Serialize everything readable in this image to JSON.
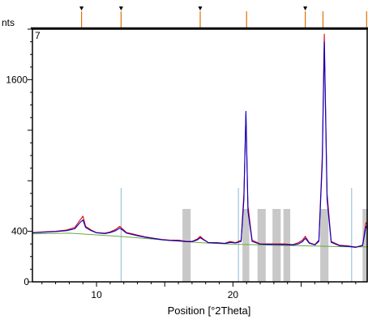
{
  "chart_data": {
    "type": "line",
    "panel_number": "7",
    "ylabel_fragment": "nts",
    "xlabel": "Position [°2Theta]",
    "xlim": [
      5.3,
      29.9
    ],
    "ylim": [
      0,
      2000
    ],
    "x_ticks": [
      {
        "value": 10,
        "label": "10"
      },
      {
        "value": 20,
        "label": "20"
      }
    ],
    "y_ticks": [
      {
        "value": 400,
        "label": "400"
      },
      {
        "value": 1600,
        "label": "1600"
      }
    ],
    "observed": {
      "color": "#e00000",
      "x": [
        5.3,
        6.0,
        7.0,
        7.8,
        8.4,
        8.8,
        9.0,
        9.2,
        9.6,
        10.0,
        10.6,
        11.0,
        11.4,
        11.7,
        11.9,
        12.2,
        12.6,
        13.0,
        13.6,
        14.2,
        14.8,
        15.4,
        16.0,
        16.6,
        17.0,
        17.4,
        17.6,
        17.8,
        18.2,
        18.8,
        19.4,
        19.8,
        20.2,
        20.6,
        20.8,
        20.95,
        21.1,
        21.4,
        22.0,
        22.6,
        23.2,
        23.8,
        24.4,
        24.8,
        25.1,
        25.3,
        25.6,
        26.0,
        26.3,
        26.55,
        26.7,
        26.9,
        27.2,
        27.8,
        28.4,
        29.0,
        29.5,
        29.75,
        29.9
      ],
      "y": [
        390,
        395,
        400,
        410,
        430,
        490,
        520,
        440,
        410,
        390,
        385,
        395,
        415,
        440,
        420,
        390,
        380,
        370,
        355,
        345,
        335,
        330,
        330,
        320,
        320,
        340,
        360,
        340,
        310,
        310,
        305,
        320,
        310,
        330,
        700,
        1330,
        600,
        330,
        300,
        300,
        300,
        300,
        295,
        310,
        330,
        360,
        310,
        295,
        330,
        1000,
        1960,
        700,
        320,
        290,
        285,
        275,
        290,
        470,
        440
      ]
    },
    "calculated": {
      "color": "#0000cc",
      "x": [
        5.3,
        6.0,
        7.0,
        7.8,
        8.4,
        8.8,
        9.0,
        9.2,
        9.6,
        10.0,
        10.6,
        11.0,
        11.4,
        11.7,
        11.9,
        12.2,
        12.6,
        13.0,
        13.6,
        14.2,
        14.8,
        15.4,
        16.0,
        16.6,
        17.0,
        17.4,
        17.6,
        17.8,
        18.2,
        18.8,
        19.4,
        19.8,
        20.2,
        20.6,
        20.8,
        20.95,
        21.1,
        21.4,
        22.0,
        22.6,
        23.2,
        23.8,
        24.4,
        24.8,
        25.1,
        25.3,
        25.6,
        26.0,
        26.3,
        26.55,
        26.7,
        26.9,
        27.2,
        27.8,
        28.4,
        29.0,
        29.5,
        29.75,
        29.9
      ],
      "y": [
        388,
        392,
        398,
        405,
        420,
        470,
        490,
        430,
        405,
        388,
        382,
        390,
        405,
        425,
        410,
        385,
        375,
        365,
        352,
        342,
        333,
        327,
        325,
        318,
        318,
        332,
        350,
        335,
        310,
        307,
        303,
        312,
        308,
        320,
        650,
        1350,
        560,
        320,
        298,
        296,
        295,
        294,
        292,
        300,
        318,
        345,
        305,
        292,
        320,
        940,
        1900,
        650,
        312,
        286,
        281,
        273,
        286,
        440,
        420
      ]
    },
    "background": {
      "color": "#6aaa3a",
      "x": [
        5.3,
        8.0,
        10.0,
        12.0,
        14.0,
        16.0,
        18.0,
        20.0,
        22.0,
        24.0,
        26.0,
        28.0,
        29.9
      ],
      "y": [
        380,
        385,
        372,
        358,
        340,
        322,
        308,
        298,
        292,
        288,
        284,
        278,
        276
      ]
    },
    "reference_lines_top": {
      "color": "#e07000",
      "positions": [
        8.9,
        11.8,
        17.6,
        21.0,
        25.3,
        26.6,
        29.8
      ],
      "marked": [
        true,
        true,
        true,
        false,
        true,
        false,
        false
      ]
    },
    "reference_lines_bottom": {
      "color": "#8ab8d8",
      "positions": [
        11.8,
        20.4,
        28.7
      ]
    },
    "gray_bands": {
      "color": "#c8c8c8",
      "ranges": [
        [
          16.3,
          16.9
        ],
        [
          20.7,
          21.2
        ],
        [
          21.8,
          22.4
        ],
        [
          22.9,
          23.5
        ],
        [
          23.7,
          24.2
        ],
        [
          26.4,
          27.0
        ],
        [
          29.5,
          29.9
        ]
      ]
    }
  }
}
